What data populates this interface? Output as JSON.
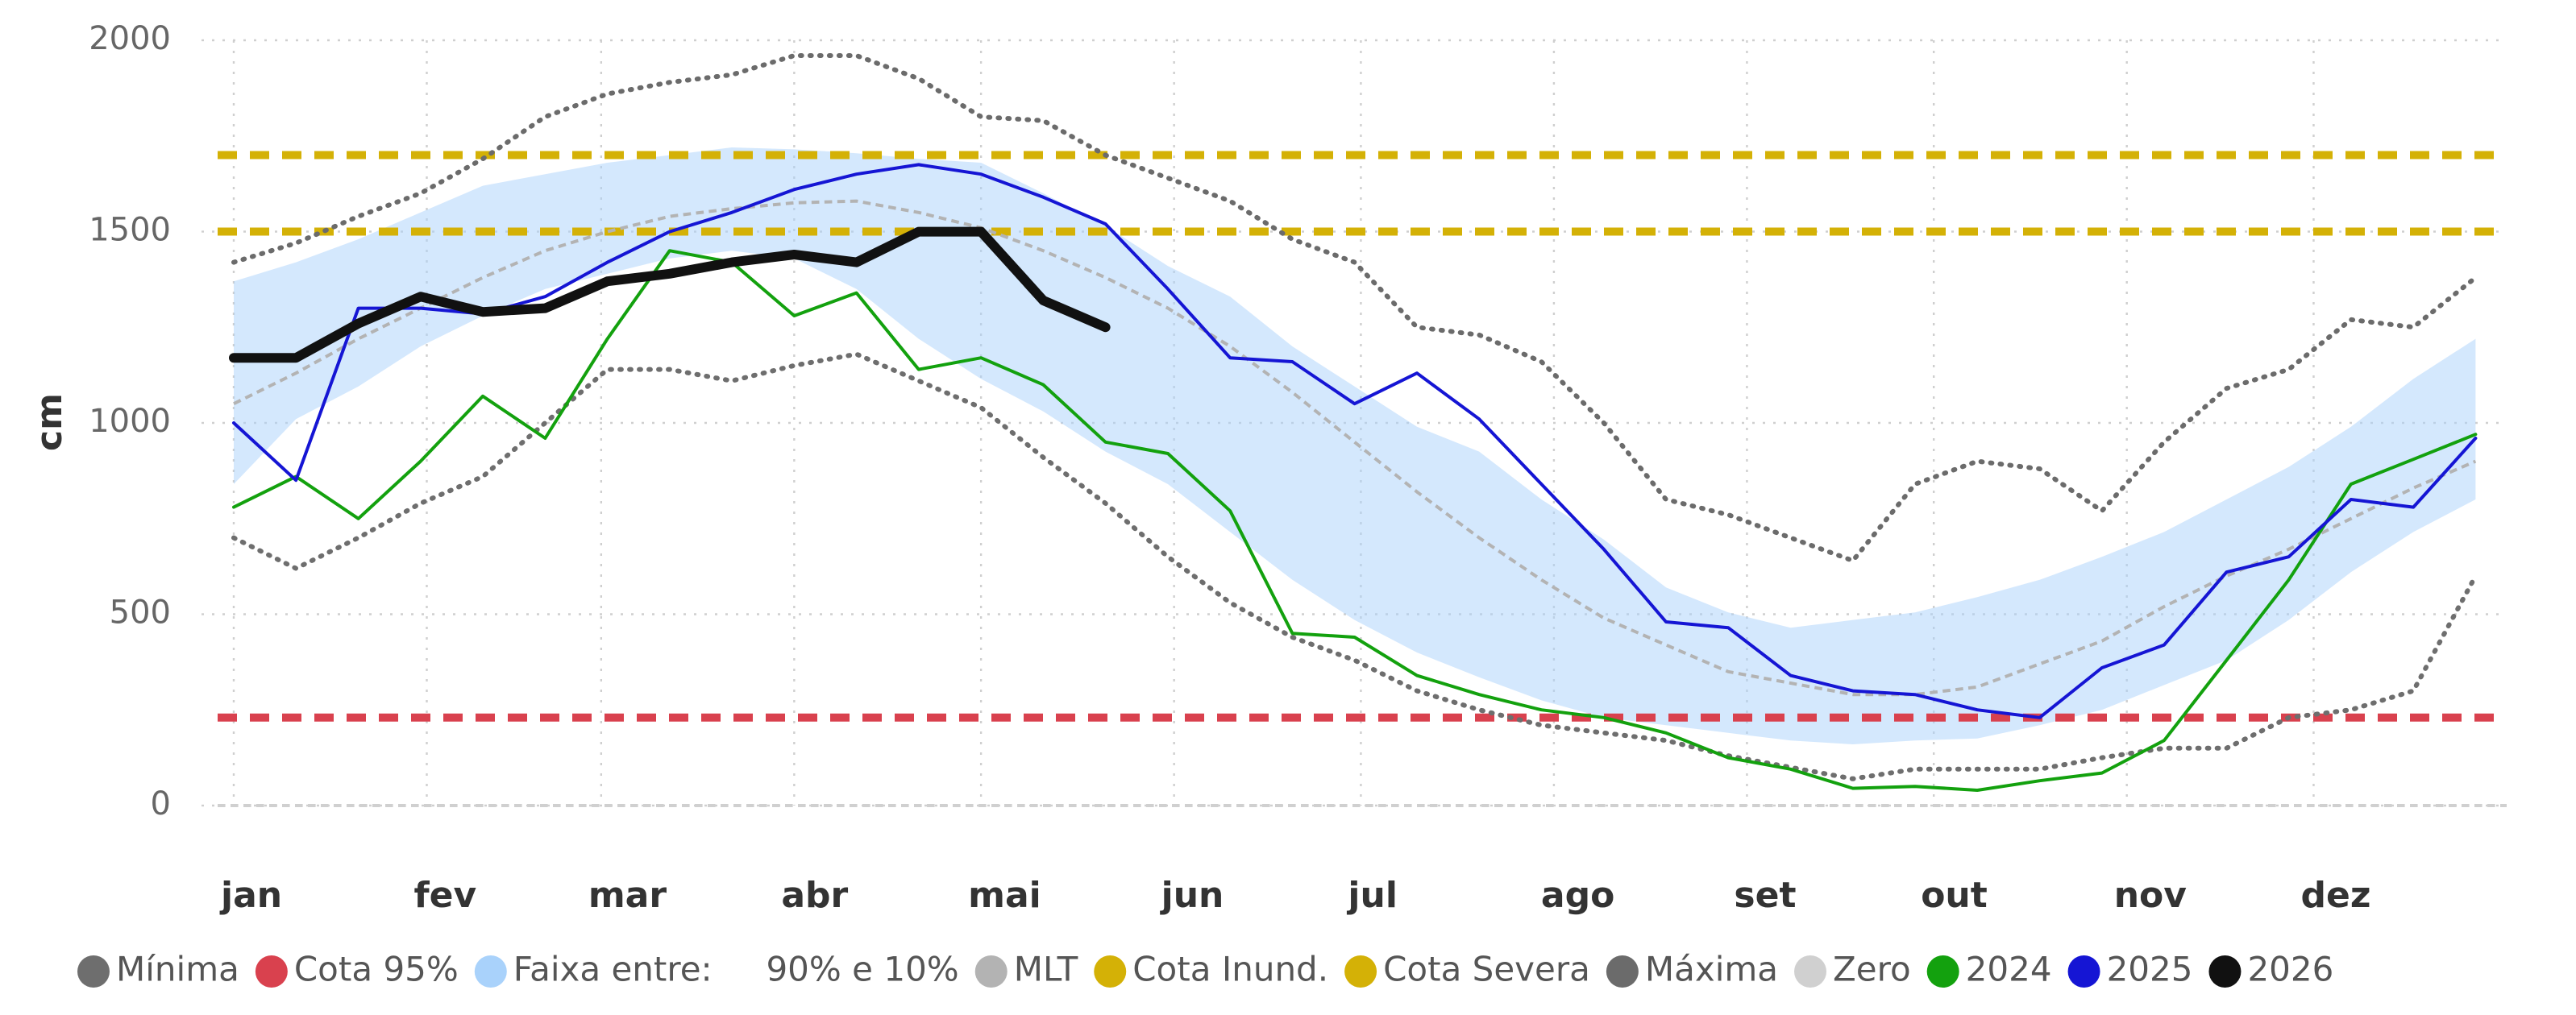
{
  "chart_data": {
    "type": "line",
    "y_label": "cm",
    "x": [
      1,
      11,
      21,
      31,
      41,
      51,
      61,
      71,
      81,
      91,
      101,
      111,
      121,
      131,
      141,
      151,
      161,
      171,
      181,
      191,
      201,
      211,
      221,
      231,
      241,
      251,
      261,
      271,
      281,
      291,
      301,
      311,
      321,
      331,
      341,
      351,
      361
    ],
    "xlim": [
      1,
      366
    ],
    "xticks": [
      {
        "value": 1,
        "label": "jan"
      },
      {
        "value": 32,
        "label": "fev"
      },
      {
        "value": 60,
        "label": "mar"
      },
      {
        "value": 91,
        "label": "abr"
      },
      {
        "value": 121,
        "label": "mai"
      },
      {
        "value": 152,
        "label": "jun"
      },
      {
        "value": 182,
        "label": "jul"
      },
      {
        "value": 213,
        "label": "ago"
      },
      {
        "value": 244,
        "label": "set"
      },
      {
        "value": 274,
        "label": "out"
      },
      {
        "value": 305,
        "label": "nov"
      },
      {
        "value": 335,
        "label": "dez"
      }
    ],
    "ylim": [
      0,
      2000
    ],
    "yticks": [
      0,
      500,
      1000,
      1500,
      2000
    ],
    "grid": true,
    "legend": "bottom",
    "series": [
      {
        "name": "Mínima",
        "kind": "line",
        "color": "#6e6e6e",
        "dash": "dotted",
        "width": 3,
        "values": [
          700,
          620,
          700,
          790,
          860,
          1000,
          1140,
          1140,
          1110,
          1150,
          1180,
          1110,
          1040,
          910,
          790,
          650,
          530,
          440,
          380,
          300,
          250,
          210,
          190,
          170,
          130,
          100,
          70,
          95,
          95,
          95,
          125,
          150,
          150,
          230,
          250,
          300,
          600
        ]
      },
      {
        "name": "Cota 95%",
        "kind": "level",
        "color": "#d9414e",
        "dash": "dashed",
        "width": 5,
        "level": 230
      },
      {
        "name": "Faixa entre:     90% e 10%",
        "kind": "band",
        "color": "#a9d2fb",
        "upper": [
          1370,
          1420,
          1480,
          1550,
          1620,
          1650,
          1680,
          1700,
          1720,
          1715,
          1705,
          1690,
          1680,
          1600,
          1515,
          1410,
          1330,
          1200,
          1095,
          990,
          925,
          800,
          695,
          570,
          505,
          465,
          485,
          505,
          545,
          590,
          650,
          715,
          800,
          885,
          990,
          1115,
          1220
        ],
        "lower": [
          840,
          1010,
          1095,
          1200,
          1280,
          1350,
          1390,
          1430,
          1450,
          1430,
          1350,
          1220,
          1115,
          1030,
          925,
          840,
          715,
          590,
          485,
          400,
          335,
          275,
          230,
          210,
          190,
          170,
          160,
          170,
          175,
          210,
          250,
          315,
          380,
          485,
          610,
          715,
          800
        ]
      },
      {
        "name": "MLT",
        "kind": "line",
        "color": "#b3b3b3",
        "dash": "dashed",
        "width": 2,
        "values": [
          1050,
          1130,
          1220,
          1300,
          1380,
          1450,
          1500,
          1540,
          1560,
          1575,
          1580,
          1550,
          1510,
          1450,
          1380,
          1300,
          1200,
          1080,
          950,
          820,
          700,
          590,
          490,
          420,
          350,
          320,
          290,
          290,
          310,
          370,
          430,
          520,
          600,
          670,
          750,
          830,
          900
        ]
      },
      {
        "name": "Cota Inund.",
        "kind": "level",
        "color": "#d4b106",
        "dash": "dashed",
        "width": 5,
        "level": 1500
      },
      {
        "name": "Cota Severa",
        "kind": "level",
        "color": "#d4b106",
        "dash": "dashed",
        "width": 5,
        "level": 1700
      },
      {
        "name": "Máxima",
        "kind": "line",
        "color": "#6b6b6b",
        "dash": "dotted",
        "width": 3,
        "values": [
          1420,
          1470,
          1540,
          1600,
          1690,
          1800,
          1860,
          1890,
          1910,
          1960,
          1960,
          1900,
          1800,
          1790,
          1700,
          1640,
          1580,
          1480,
          1420,
          1250,
          1230,
          1160,
          1000,
          800,
          760,
          700,
          640,
          840,
          900,
          880,
          770,
          950,
          1090,
          1140,
          1270,
          1250,
          1380
        ]
      },
      {
        "name": "Zero",
        "kind": "level",
        "color": "#d0d0d0",
        "dash": "dashed",
        "width": 2,
        "level": 0
      },
      {
        "name": "2024",
        "kind": "line",
        "color": "#13a10e",
        "dash": "solid",
        "width": 2,
        "values": [
          780,
          860,
          750,
          900,
          1070,
          960,
          1220,
          1450,
          1420,
          1280,
          1340,
          1140,
          1170,
          1100,
          950,
          920,
          770,
          450,
          440,
          340,
          290,
          250,
          230,
          190,
          125,
          95,
          45,
          50,
          40,
          65,
          85,
          170,
          380,
          590,
          840,
          905,
          970
        ]
      },
      {
        "name": "2025",
        "kind": "line",
        "color": "#1515d4",
        "dash": "solid",
        "width": 2,
        "values": [
          1000,
          850,
          1300,
          1300,
          1285,
          1330,
          1420,
          1500,
          1550,
          1610,
          1650,
          1675,
          1650,
          1590,
          1520,
          1350,
          1170,
          1160,
          1050,
          1130,
          1010,
          840,
          670,
          480,
          465,
          340,
          300,
          290,
          250,
          230,
          360,
          420,
          610,
          650,
          800,
          780,
          960
        ]
      },
      {
        "name": "2026",
        "kind": "line",
        "color": "#111111",
        "dash": "solid",
        "width": 6,
        "values": [
          1170,
          1170,
          1260,
          1330,
          1290,
          1300,
          1370,
          1390,
          1420,
          1440,
          1420,
          1500,
          1500,
          1320,
          1250,
          null,
          null,
          null,
          null,
          null,
          null,
          null,
          null,
          null,
          null,
          null,
          null,
          null,
          null,
          null,
          null,
          null,
          null,
          null,
          null,
          null,
          null
        ]
      }
    ]
  }
}
